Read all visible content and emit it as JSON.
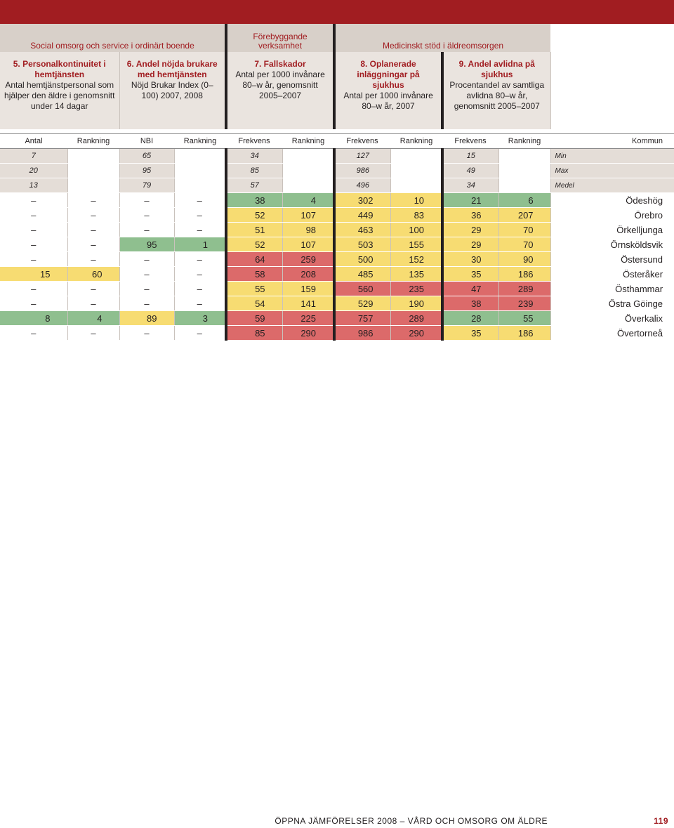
{
  "sections": {
    "social": "Social omsorg och service i ordinärt boende",
    "forebyggande": "Förebyggande verksamhet",
    "medicinskt": "Medicinskt stöd i äldreomsorgen"
  },
  "headers": [
    {
      "title": "5. Personalkontinuitet i hemtjänsten",
      "desc": "Antal hemtjänstpersonal som hjälper den äldre i genomsnitt under 14 dagar"
    },
    {
      "title": "6. Andel nöjda brukare med hemtjänsten",
      "desc": "Nöjd Brukar Index (0–100) 2007, 2008"
    },
    {
      "title": "7. Fallskador",
      "desc": "Antal per 1000 invånare 80–w år, genomsnitt 2005–2007"
    },
    {
      "title": "8. Oplanerade inläggningar på sjukhus",
      "desc": "Antal per 1000 invånare 80–w år, 2007"
    },
    {
      "title": "9. Andel avlidna på sjukhus",
      "desc": "Procentandel av samtliga avlidna 80–w år, genomsnitt 2005–2007"
    }
  ],
  "columns": [
    "Antal",
    "Rankning",
    "NBI",
    "Rankning",
    "Frekvens",
    "Rankning",
    "Frekvens",
    "Rankning",
    "Frekvens",
    "Rankning",
    "Kommun"
  ],
  "stats": [
    {
      "label": "Min",
      "v": [
        "7",
        "65",
        "34",
        "127",
        "15"
      ]
    },
    {
      "label": "Max",
      "v": [
        "20",
        "95",
        "85",
        "986",
        "49"
      ]
    },
    {
      "label": "Medel",
      "v": [
        "13",
        "79",
        "57",
        "496",
        "34"
      ]
    }
  ],
  "rows": [
    {
      "kommun": "Ödeshög",
      "c": [
        [
          "–",
          "n"
        ],
        [
          "–",
          "n"
        ],
        [
          "–",
          "n"
        ],
        [
          "–",
          "n"
        ],
        [
          "38",
          "g"
        ],
        [
          "4",
          "g"
        ],
        [
          "302",
          "y"
        ],
        [
          "10",
          "y"
        ],
        [
          "21",
          "g"
        ],
        [
          "6",
          "g"
        ]
      ]
    },
    {
      "kommun": "Örebro",
      "c": [
        [
          "–",
          "n"
        ],
        [
          "–",
          "n"
        ],
        [
          "–",
          "n"
        ],
        [
          "–",
          "n"
        ],
        [
          "52",
          "y"
        ],
        [
          "107",
          "y"
        ],
        [
          "449",
          "y"
        ],
        [
          "83",
          "y"
        ],
        [
          "36",
          "y"
        ],
        [
          "207",
          "y"
        ]
      ]
    },
    {
      "kommun": "Örkelljunga",
      "c": [
        [
          "–",
          "n"
        ],
        [
          "–",
          "n"
        ],
        [
          "–",
          "n"
        ],
        [
          "–",
          "n"
        ],
        [
          "51",
          "y"
        ],
        [
          "98",
          "y"
        ],
        [
          "463",
          "y"
        ],
        [
          "100",
          "y"
        ],
        [
          "29",
          "y"
        ],
        [
          "70",
          "y"
        ]
      ]
    },
    {
      "kommun": "Örnsköldsvik",
      "c": [
        [
          "–",
          "n"
        ],
        [
          "–",
          "n"
        ],
        [
          "95",
          "g"
        ],
        [
          "1",
          "g"
        ],
        [
          "52",
          "y"
        ],
        [
          "107",
          "y"
        ],
        [
          "503",
          "y"
        ],
        [
          "155",
          "y"
        ],
        [
          "29",
          "y"
        ],
        [
          "70",
          "y"
        ]
      ]
    },
    {
      "kommun": "Östersund",
      "c": [
        [
          "–",
          "n"
        ],
        [
          "–",
          "n"
        ],
        [
          "–",
          "n"
        ],
        [
          "–",
          "n"
        ],
        [
          "64",
          "r"
        ],
        [
          "259",
          "r"
        ],
        [
          "500",
          "y"
        ],
        [
          "152",
          "y"
        ],
        [
          "30",
          "y"
        ],
        [
          "90",
          "y"
        ]
      ]
    },
    {
      "kommun": "Österåker",
      "c": [
        [
          "15",
          "y"
        ],
        [
          "60",
          "y"
        ],
        [
          "–",
          "n"
        ],
        [
          "–",
          "n"
        ],
        [
          "58",
          "r"
        ],
        [
          "208",
          "r"
        ],
        [
          "485",
          "y"
        ],
        [
          "135",
          "y"
        ],
        [
          "35",
          "y"
        ],
        [
          "186",
          "y"
        ]
      ]
    },
    {
      "kommun": "Östhammar",
      "c": [
        [
          "–",
          "n"
        ],
        [
          "–",
          "n"
        ],
        [
          "–",
          "n"
        ],
        [
          "–",
          "n"
        ],
        [
          "55",
          "y"
        ],
        [
          "159",
          "y"
        ],
        [
          "560",
          "r"
        ],
        [
          "235",
          "r"
        ],
        [
          "47",
          "r"
        ],
        [
          "289",
          "r"
        ]
      ]
    },
    {
      "kommun": "Östra Göinge",
      "c": [
        [
          "–",
          "n"
        ],
        [
          "–",
          "n"
        ],
        [
          "–",
          "n"
        ],
        [
          "–",
          "n"
        ],
        [
          "54",
          "y"
        ],
        [
          "141",
          "y"
        ],
        [
          "529",
          "y"
        ],
        [
          "190",
          "y"
        ],
        [
          "38",
          "r"
        ],
        [
          "239",
          "r"
        ]
      ]
    },
    {
      "kommun": "Överkalix",
      "c": [
        [
          "8",
          "g"
        ],
        [
          "4",
          "g"
        ],
        [
          "89",
          "y"
        ],
        [
          "3",
          "g"
        ],
        [
          "59",
          "r"
        ],
        [
          "225",
          "r"
        ],
        [
          "757",
          "r"
        ],
        [
          "289",
          "r"
        ],
        [
          "28",
          "g"
        ],
        [
          "55",
          "g"
        ]
      ]
    },
    {
      "kommun": "Övertorneå",
      "c": [
        [
          "–",
          "n"
        ],
        [
          "–",
          "n"
        ],
        [
          "–",
          "n"
        ],
        [
          "–",
          "n"
        ],
        [
          "85",
          "r"
        ],
        [
          "290",
          "r"
        ],
        [
          "986",
          "r"
        ],
        [
          "290",
          "r"
        ],
        [
          "35",
          "y"
        ],
        [
          "186",
          "y"
        ]
      ]
    }
  ],
  "footer": {
    "text": "ÖPPNA JÄMFÖRELSER 2008 – VÅRD OCH OMSORG OM ÄLDRE",
    "page": "119"
  }
}
